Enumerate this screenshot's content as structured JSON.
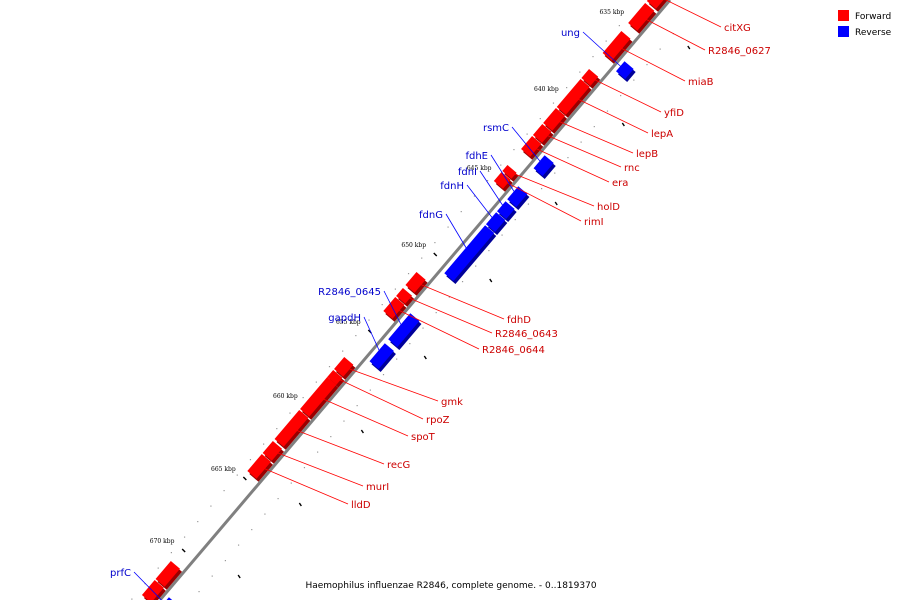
{
  "caption": "Haemophilus influenzae R2846, complete genome. - 0..1819370",
  "legend": [
    {
      "label": "Forward",
      "color": "#ff0000"
    },
    {
      "label": "Reverse",
      "color": "#0000ff"
    }
  ],
  "colors": {
    "forward": "#ff0000",
    "reverse": "#0000ff",
    "axis": "#808080",
    "label_forward": "#cc0000",
    "label_reverse": "#0000cc"
  },
  "ticks": [
    "635 kbp",
    "640 kbp",
    "645 kbp",
    "650 kbp",
    "655 kbp",
    "660 kbp",
    "665 kbp",
    "670 kbp"
  ],
  "genes": [
    {
      "name": "citXG",
      "strand": "forward"
    },
    {
      "name": "R2846_0627",
      "strand": "forward"
    },
    {
      "name": "miaB",
      "strand": "forward"
    },
    {
      "name": "yfiD",
      "strand": "forward"
    },
    {
      "name": "lepA",
      "strand": "forward"
    },
    {
      "name": "lepB",
      "strand": "forward"
    },
    {
      "name": "rnc",
      "strand": "forward"
    },
    {
      "name": "era",
      "strand": "forward"
    },
    {
      "name": "holD",
      "strand": "forward"
    },
    {
      "name": "rimI",
      "strand": "forward"
    },
    {
      "name": "fdhD",
      "strand": "forward"
    },
    {
      "name": "R2846_0643",
      "strand": "forward"
    },
    {
      "name": "R2846_0644",
      "strand": "forward"
    },
    {
      "name": "gmk",
      "strand": "forward"
    },
    {
      "name": "rpoZ",
      "strand": "forward"
    },
    {
      "name": "spoT",
      "strand": "forward"
    },
    {
      "name": "recG",
      "strand": "forward"
    },
    {
      "name": "murI",
      "strand": "forward"
    },
    {
      "name": "lldD",
      "strand": "forward"
    },
    {
      "name": "ung",
      "strand": "reverse"
    },
    {
      "name": "rsmC",
      "strand": "reverse"
    },
    {
      "name": "fdhE",
      "strand": "reverse"
    },
    {
      "name": "fdnI",
      "strand": "reverse"
    },
    {
      "name": "fdnH",
      "strand": "reverse"
    },
    {
      "name": "fdnG",
      "strand": "reverse"
    },
    {
      "name": "R2846_0645",
      "strand": "reverse"
    },
    {
      "name": "gapdH",
      "strand": "reverse"
    },
    {
      "name": "prfC",
      "strand": "reverse"
    }
  ]
}
